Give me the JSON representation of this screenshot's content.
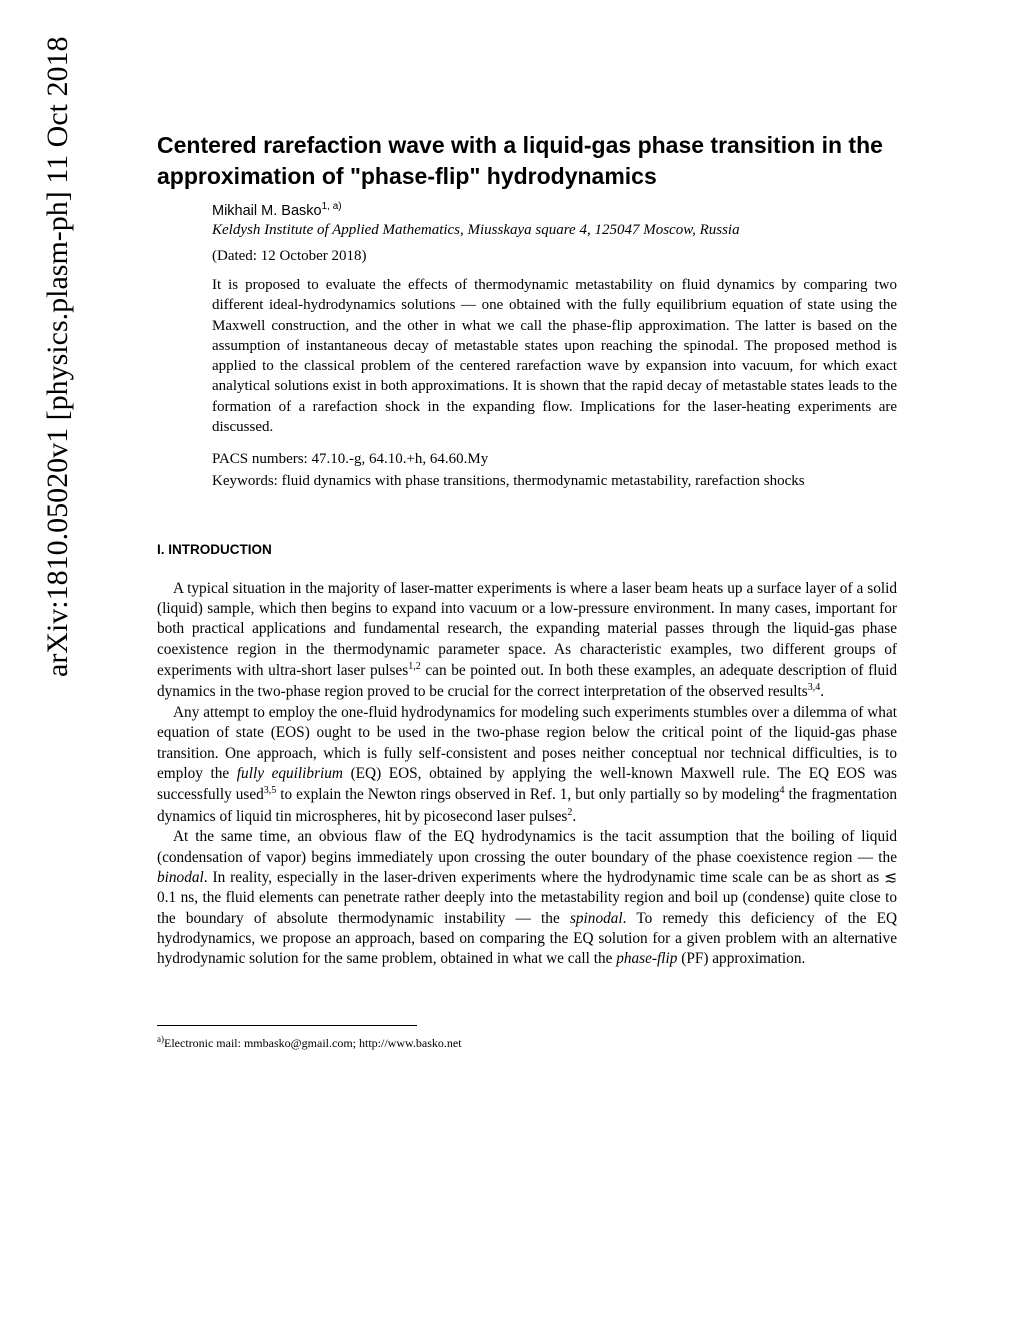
{
  "arxiv": {
    "id": "arXiv:1810.05020v1  [physics.plasm-ph]  11 Oct 2018"
  },
  "paper": {
    "title": "Centered rarefaction wave with a liquid-gas phase transition in the approximation of \"phase-flip\" hydrodynamics",
    "author": "Mikhail M. Basko",
    "author_sup": "1, a)",
    "affiliation": "Keldysh Institute of Applied Mathematics, Miusskaya square 4, 125047 Moscow, Russia",
    "dated": "(Dated: 12 October 2018)",
    "abstract": "It is proposed to evaluate the effects of thermodynamic metastability on fluid dynamics by comparing two different ideal-hydrodynamics solutions — one obtained with the fully equilibrium equation of state using the Maxwell construction, and the other in what we call the phase-flip approximation. The latter is based on the assumption of instantaneous decay of metastable states upon reaching the spinodal. The proposed method is applied to the classical problem of the centered rarefaction wave by expansion into vacuum, for which exact analytical solutions exist in both approximations. It is shown that the rapid decay of metastable states leads to the formation of a rarefaction shock in the expanding flow. Implications for the laser-heating experiments are discussed.",
    "pacs": "PACS numbers: 47.10.-g, 64.10.+h, 64.60.My",
    "keywords": "Keywords: fluid dynamics with phase transitions, thermodynamic metastability, rarefaction shocks",
    "section_heading": "I.   INTRODUCTION",
    "para1_a": "A typical situation in the majority of laser-matter experiments is where a laser beam heats up a surface layer of a solid (liquid) sample, which then begins to expand into vacuum or a low-pressure environment. In many cases, important for both practical applications and fundamental research, the expanding material passes through the liquid-gas phase coexistence region in the thermodynamic parameter space. As characteristic examples, two different groups of experiments with ultra-short laser pulses",
    "para1_sup1": "1,2",
    "para1_b": " can be pointed out. In both these examples, an adequate description of fluid dynamics in the two-phase region proved to be crucial for the correct interpretation of the observed results",
    "para1_sup2": "3,4",
    "para1_c": ".",
    "para2_a": "Any attempt to employ the one-fluid hydrodynamics for modeling such experiments stumbles over a dilemma of what equation of state (EOS) ought to be used in the two-phase region below the critical point of the liquid-gas phase transition. One approach, which is fully self-consistent and poses neither conceptual nor technical difficulties, is to employ the ",
    "para2_i1": "fully equilibrium",
    "para2_b": " (EQ) EOS, obtained by applying the well-known Maxwell rule. The EQ EOS was successfully used",
    "para2_sup1": "3,5",
    "para2_c": " to explain the Newton rings observed in Ref. 1, but only partially so by modeling",
    "para2_sup2": "4",
    "para2_d": " the fragmentation dynamics of liquid tin microspheres, hit by picosecond laser pulses",
    "para2_sup3": "2",
    "para2_e": ".",
    "para3_a": "At the same time, an obvious flaw of the EQ hydrodynamics is the tacit assumption that the boiling of liquid (condensation of vapor) begins immediately upon crossing the outer boundary of the phase coexistence region — the ",
    "para3_i1": "binodal",
    "para3_b": ". In reality, especially in the laser-driven experiments where the hydrodynamic time scale can be as short as ≲ 0.1 ns, the fluid elements can penetrate rather deeply into the metastability region and boil up (condense) quite close to the boundary of absolute thermodynamic instability — the ",
    "para3_i2": "spinodal",
    "para3_c": ". To remedy this deficiency of the EQ hydrodynamics, we propose an approach, based on comparing the EQ solution for a given problem with an alternative hydrodynamic solution for the same problem, obtained in what we call the ",
    "para3_i3": "phase-flip",
    "para3_d": " (PF) approximation.",
    "footnote_sup": "a)",
    "footnote_text": "Electronic mail: mmbasko@gmail.com; http://www.basko.net"
  },
  "style": {
    "background_color": "#ffffff",
    "text_color": "#000000",
    "title_fontsize": 23,
    "body_fontsize": 15.3,
    "abstract_fontsize": 15
  }
}
